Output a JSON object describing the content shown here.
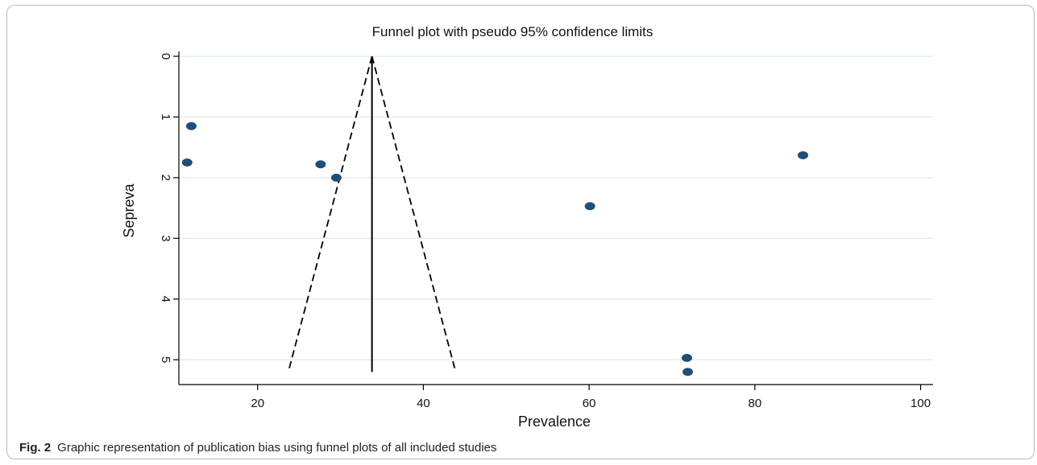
{
  "caption": {
    "label": "Fig. 2",
    "text": "Graphic representation of publication bias using funnel plots of all included studies"
  },
  "colors": {
    "marker": "#1f4e79",
    "grid": "#dbe9ef",
    "axis": "#000000"
  },
  "chart_data": {
    "type": "scatter",
    "title": "Funnel plot with pseudo 95% confidence limits",
    "xlabel": "Prevalence",
    "ylabel": "Sepreva",
    "xlim": [
      10.5,
      101.5
    ],
    "ylim": [
      0,
      5.25
    ],
    "y_inverted": true,
    "grid": true,
    "xticks": [
      20,
      40,
      60,
      80,
      100
    ],
    "yticks": [
      0,
      1,
      2,
      3,
      4,
      5
    ],
    "pooled_estimate": 33.8,
    "ci_limits": {
      "apex": [
        33.8,
        0
      ],
      "lower_end": [
        23.8,
        5.15
      ],
      "upper_end": [
        43.8,
        5.15
      ]
    },
    "points": [
      {
        "x": 12.0,
        "y": 1.15
      },
      {
        "x": 11.5,
        "y": 1.75
      },
      {
        "x": 27.6,
        "y": 1.78
      },
      {
        "x": 29.5,
        "y": 2.0
      },
      {
        "x": 60.1,
        "y": 2.47
      },
      {
        "x": 85.8,
        "y": 1.63
      },
      {
        "x": 71.8,
        "y": 4.97
      },
      {
        "x": 71.9,
        "y": 5.2
      }
    ]
  }
}
